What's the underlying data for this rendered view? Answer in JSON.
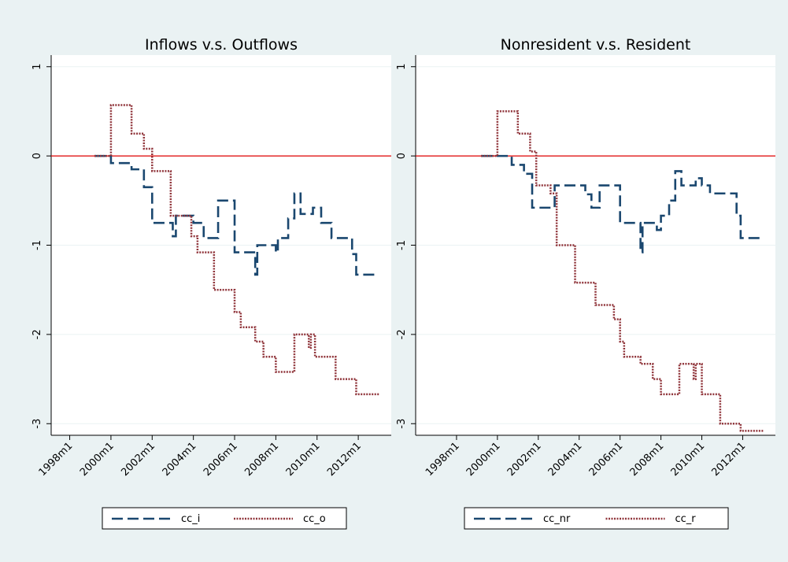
{
  "chart_data": [
    {
      "type": "line",
      "title": "Inflows v.s. Outflows",
      "xlim": [
        1997.1,
        2013.6
      ],
      "ylim": [
        -3.13,
        1.13
      ],
      "xticks": [
        {
          "value": 1998,
          "label": "1998m1"
        },
        {
          "value": 2000,
          "label": "2000m1"
        },
        {
          "value": 2002,
          "label": "2002m1"
        },
        {
          "value": 2004,
          "label": "2004m1"
        },
        {
          "value": 2006,
          "label": "2006m1"
        },
        {
          "value": 2008,
          "label": "2008m1"
        },
        {
          "value": 2010,
          "label": "2010m1"
        },
        {
          "value": 2012,
          "label": "2012m1"
        }
      ],
      "yticks": [
        -3,
        -2,
        -1,
        0,
        1
      ],
      "grid": true,
      "hline": {
        "value": 0,
        "color": "#e00000"
      },
      "series": [
        {
          "name": "cc_i",
          "color": "#1a476f",
          "dash": "dash",
          "x": [
            1999.2,
            2000,
            2000,
            2001,
            2001,
            2001.6,
            2001.6,
            2002,
            2002,
            2003,
            2003,
            2003.15,
            2003.15,
            2004,
            2004,
            2004.5,
            2004.5,
            2005.2,
            2005.2,
            2006,
            2006,
            2007,
            2007,
            2007.1,
            2007.1,
            2008,
            2008,
            2008.1,
            2008.1,
            2008.6,
            2008.6,
            2008.9,
            2008.9,
            2009.2,
            2009.2,
            2009.8,
            2009.8,
            2010.2,
            2010.2,
            2010.7,
            2010.7,
            2011.7,
            2011.7,
            2011.9,
            2011.9,
            2013
          ],
          "values": [
            0,
            0,
            -0.08,
            -0.08,
            -0.15,
            -0.15,
            -0.35,
            -0.35,
            -0.75,
            -0.75,
            -0.9,
            -0.9,
            -0.67,
            -0.67,
            -0.75,
            -0.75,
            -0.92,
            -0.92,
            -0.5,
            -0.5,
            -1.08,
            -1.08,
            -1.33,
            -1.33,
            -1,
            -1,
            -1.08,
            -1.08,
            -0.92,
            -0.92,
            -0.7,
            -0.7,
            -0.42,
            -0.42,
            -0.65,
            -0.65,
            -0.58,
            -0.58,
            -0.75,
            -0.75,
            -0.92,
            -0.92,
            -1.1,
            -1.1,
            -1.33,
            -1.33
          ]
        },
        {
          "name": "cc_o",
          "color": "#90353b",
          "dash": "dot",
          "x": [
            1999.2,
            2000,
            2000,
            2001,
            2001,
            2001.6,
            2001.6,
            2002,
            2002,
            2002.9,
            2002.9,
            2003.9,
            2003.9,
            2004.2,
            2004.2,
            2005,
            2005,
            2006,
            2006,
            2006.3,
            2006.3,
            2007,
            2007,
            2007.4,
            2007.4,
            2008,
            2008,
            2008.9,
            2008.9,
            2009.6,
            2009.6,
            2009.7,
            2009.7,
            2009.9,
            2009.9,
            2010.9,
            2010.9,
            2011.9,
            2011.9,
            2013
          ],
          "values": [
            0,
            0,
            0.57,
            0.57,
            0.25,
            0.25,
            0.08,
            0.08,
            -0.17,
            -0.17,
            -0.67,
            -0.67,
            -0.9,
            -0.9,
            -1.08,
            -1.08,
            -1.5,
            -1.5,
            -1.75,
            -1.75,
            -1.92,
            -1.92,
            -2.08,
            -2.08,
            -2.25,
            -2.25,
            -2.42,
            -2.42,
            -2,
            -2,
            -2.15,
            -2.15,
            -2,
            -2,
            -2.25,
            -2.25,
            -2.5,
            -2.5,
            -2.67,
            -2.67
          ]
        }
      ]
    },
    {
      "type": "line",
      "title": "Nonresident v.s. Resident",
      "xlim": [
        1996.0,
        2013.6
      ],
      "ylim": [
        -3.13,
        1.13
      ],
      "xticks": [
        {
          "value": 1998,
          "label": "1998m1"
        },
        {
          "value": 2000,
          "label": "2000m1"
        },
        {
          "value": 2002,
          "label": "2002m1"
        },
        {
          "value": 2004,
          "label": "2004m1"
        },
        {
          "value": 2006,
          "label": "2006m1"
        },
        {
          "value": 2008,
          "label": "2008m1"
        },
        {
          "value": 2010,
          "label": "2010m1"
        },
        {
          "value": 2012,
          "label": "2012m1"
        }
      ],
      "yticks": [
        -3,
        -2,
        -1,
        0,
        1
      ],
      "grid": true,
      "hline": {
        "value": 0,
        "color": "#e00000"
      },
      "series": [
        {
          "name": "cc_nr",
          "color": "#1a476f",
          "dash": "dash",
          "x": [
            1999.2,
            2000.7,
            2000.7,
            2001.3,
            2001.3,
            2001.7,
            2001.7,
            2002.8,
            2002.8,
            2004.3,
            2004.3,
            2004.6,
            2004.6,
            2005,
            2005,
            2006,
            2006,
            2007,
            2007,
            2007.1,
            2007.1,
            2007.8,
            2007.8,
            2008,
            2008,
            2008.4,
            2008.4,
            2008.7,
            2008.7,
            2009,
            2009,
            2009.7,
            2009.7,
            2010,
            2010,
            2010.4,
            2010.4,
            2011.7,
            2011.7,
            2011.9,
            2011.9,
            2013
          ],
          "values": [
            0,
            0,
            -0.1,
            -0.1,
            -0.2,
            -0.2,
            -0.58,
            -0.58,
            -0.33,
            -0.33,
            -0.43,
            -0.43,
            -0.58,
            -0.58,
            -0.33,
            -0.33,
            -0.75,
            -0.75,
            -1.08,
            -1.08,
            -0.75,
            -0.75,
            -0.83,
            -0.83,
            -0.67,
            -0.67,
            -0.5,
            -0.5,
            -0.17,
            -0.17,
            -0.33,
            -0.33,
            -0.25,
            -0.25,
            -0.33,
            -0.33,
            -0.42,
            -0.42,
            -0.67,
            -0.67,
            -0.92,
            -0.92
          ]
        },
        {
          "name": "cc_r",
          "color": "#90353b",
          "dash": "dot",
          "x": [
            1999.2,
            2000,
            2000,
            2001,
            2001,
            2001.6,
            2001.6,
            2001.9,
            2001.9,
            2002.6,
            2002.6,
            2002.9,
            2002.9,
            2003.8,
            2003.8,
            2004.8,
            2004.8,
            2005.7,
            2005.7,
            2006,
            2006,
            2006.2,
            2006.2,
            2007,
            2007,
            2007.6,
            2007.6,
            2008,
            2008,
            2008.9,
            2008.9,
            2009.6,
            2009.6,
            2009.7,
            2009.7,
            2010,
            2010,
            2010.9,
            2010.9,
            2011.9,
            2011.9,
            2013
          ],
          "values": [
            0,
            0,
            0.5,
            0.5,
            0.25,
            0.25,
            0.05,
            0.05,
            -0.33,
            -0.33,
            -0.42,
            -0.42,
            -1,
            -1,
            -1.42,
            -1.42,
            -1.67,
            -1.67,
            -1.83,
            -1.83,
            -2.08,
            -2.08,
            -2.25,
            -2.25,
            -2.33,
            -2.33,
            -2.5,
            -2.5,
            -2.67,
            -2.67,
            -2.33,
            -2.33,
            -2.5,
            -2.5,
            -2.33,
            -2.33,
            -2.67,
            -2.67,
            -3,
            -3,
            -3.08,
            -3.08
          ]
        }
      ]
    }
  ]
}
